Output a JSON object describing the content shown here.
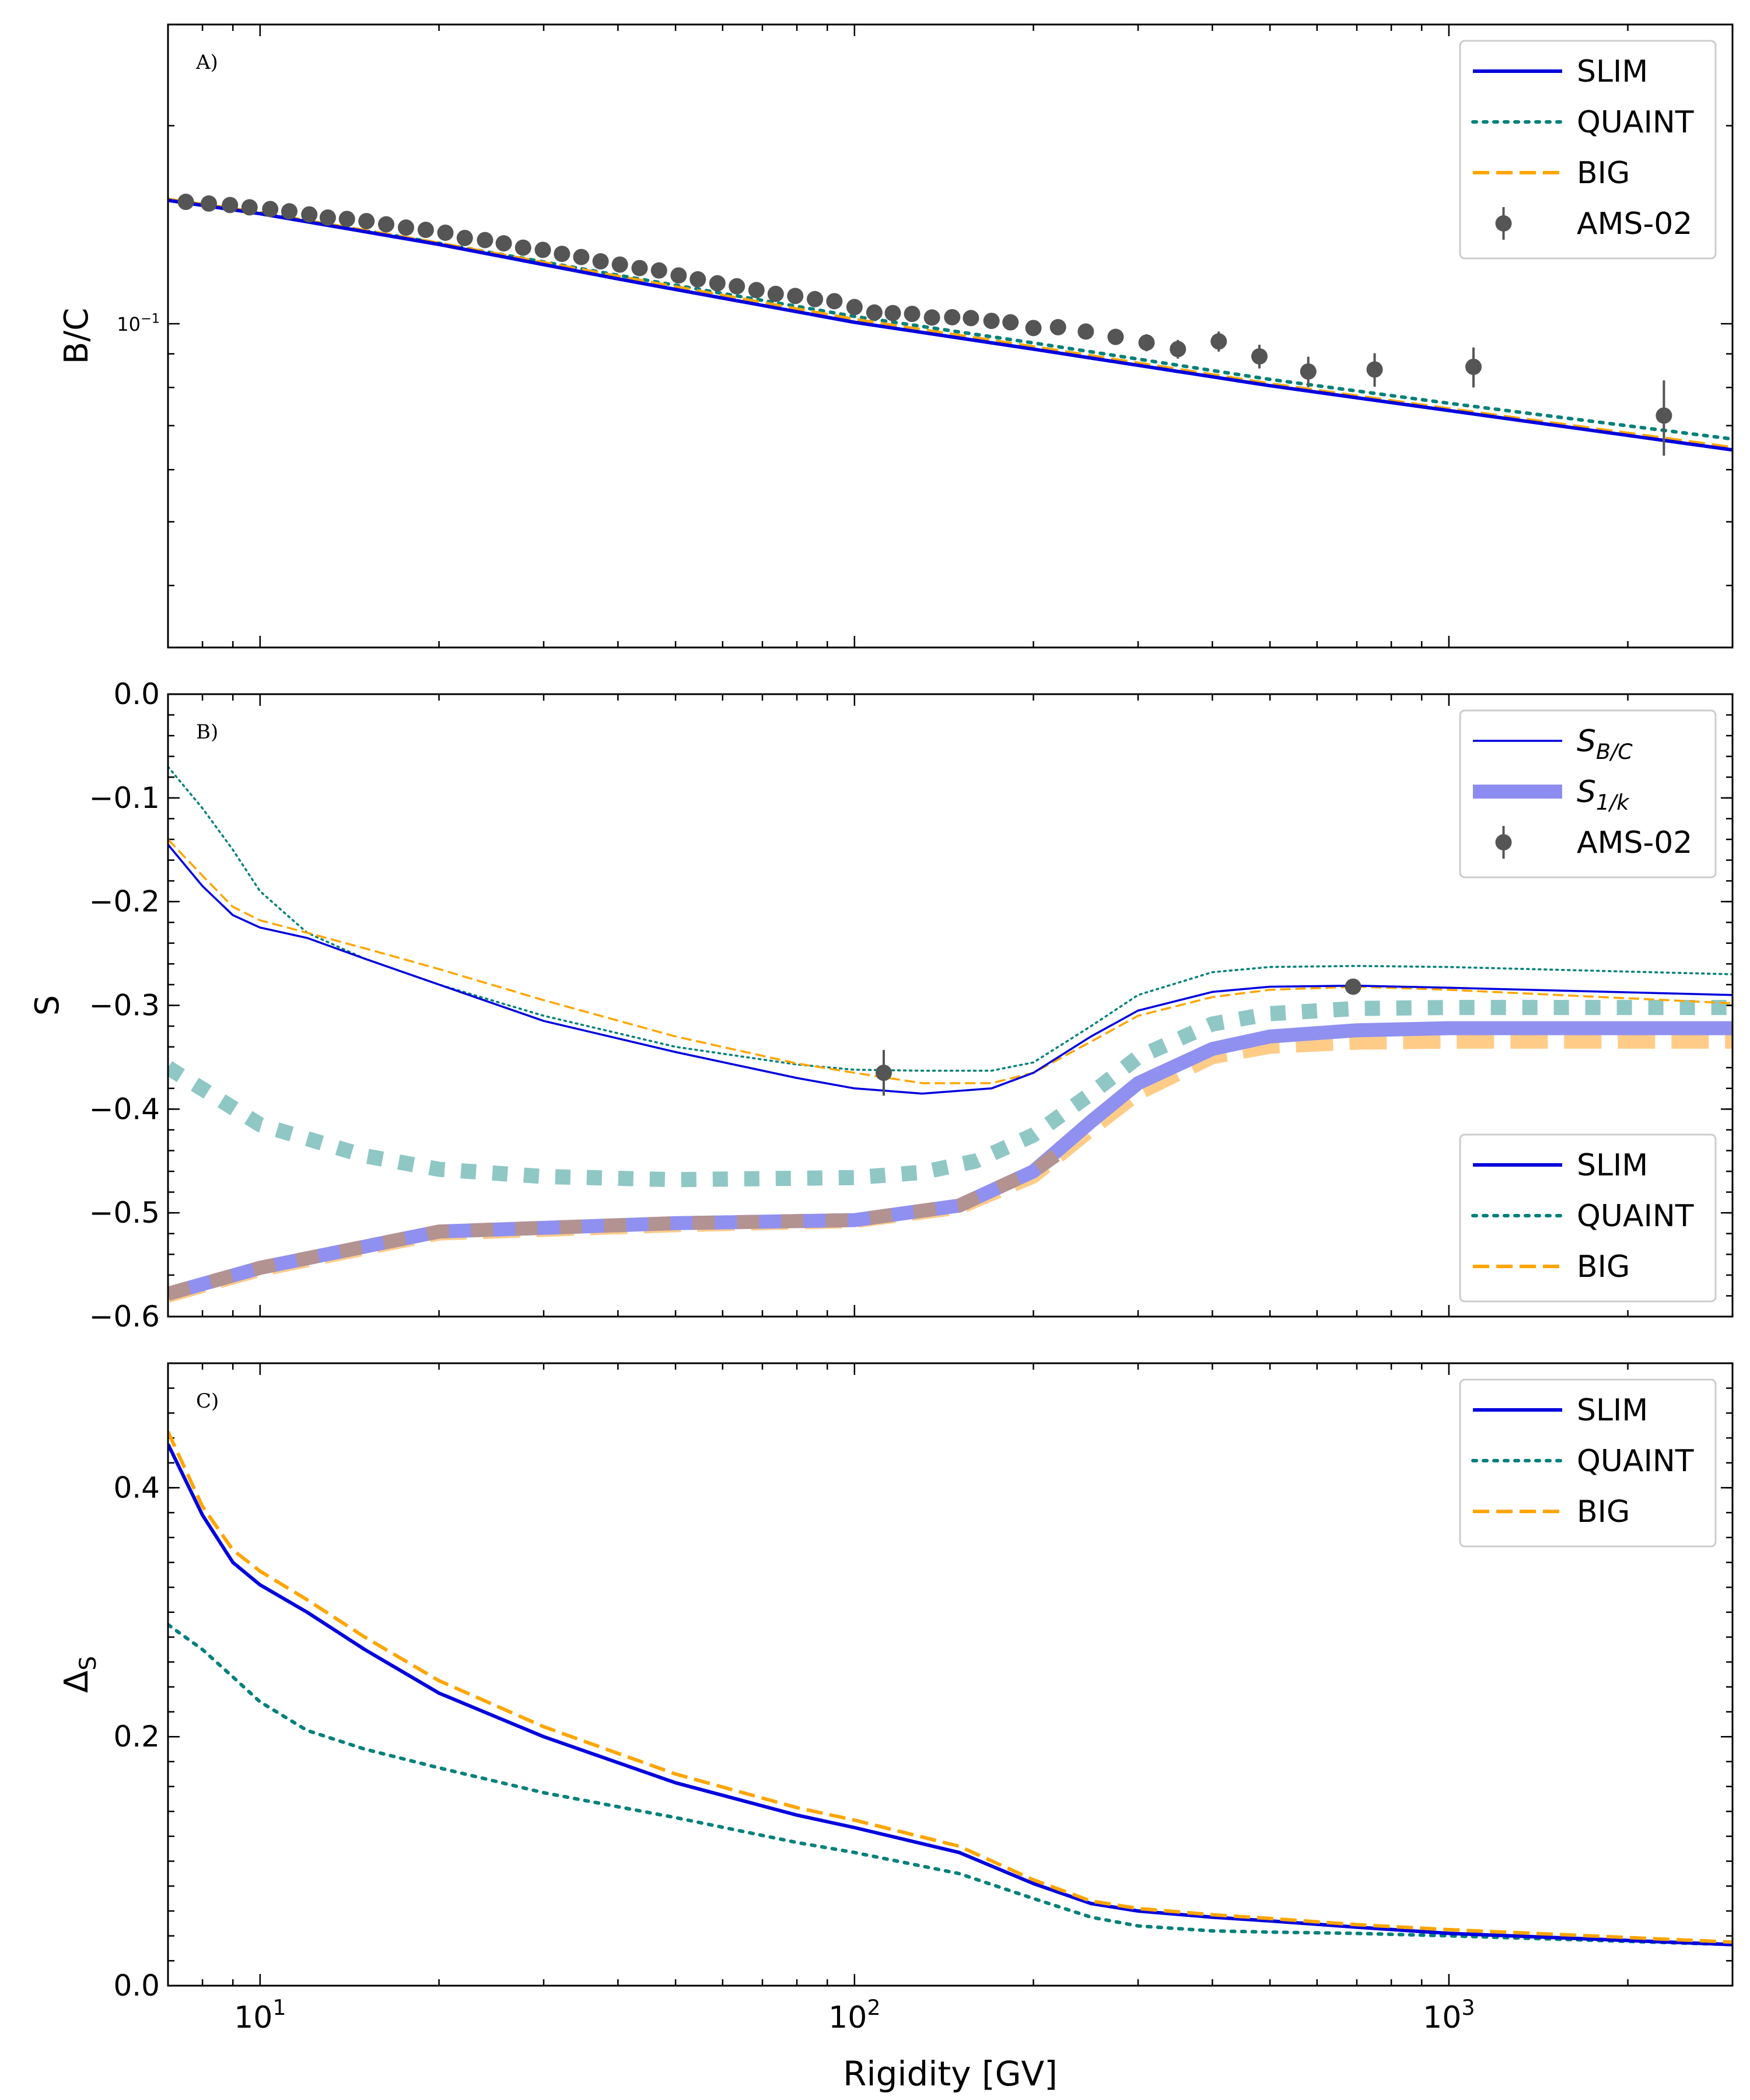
{
  "chart_data": [
    {
      "type": "line",
      "panel_label": "A)",
      "ylabel": "B/C",
      "yscale": "log",
      "xscale": "log",
      "xlim": [
        7,
        3000
      ],
      "ylim": [
        0.0322,
        0.285
      ],
      "yticks": [
        {
          "value": 0.1,
          "base": "10",
          "exp": "−1"
        }
      ],
      "legend": {
        "position": "top-right",
        "entries": [
          {
            "label": "SLIM",
            "style": "solid",
            "color": "#0000dd"
          },
          {
            "label": "QUAINT",
            "style": "dotted",
            "color": "#00807a"
          },
          {
            "label": "BIG",
            "style": "dashed",
            "color": "#ffa500"
          },
          {
            "label": "AMS-02",
            "style": "marker",
            "color": "#555555"
          }
        ]
      },
      "series": [
        {
          "name": "QUAINT",
          "color": "#00807a",
          "style": "dotted",
          "x": [
            7,
            10,
            20,
            40,
            100,
            200,
            500,
            1000,
            3000
          ],
          "y": [
            0.1545,
            0.1475,
            0.1325,
            0.1185,
            0.1026,
            0.0935,
            0.0823,
            0.0757,
            0.0668
          ]
        },
        {
          "name": "BIG",
          "color": "#ffa500",
          "style": "dashed",
          "x": [
            7,
            10,
            20,
            40,
            100,
            200,
            500,
            1000,
            3000
          ],
          "y": [
            0.1545,
            0.1475,
            0.1325,
            0.118,
            0.1015,
            0.0922,
            0.081,
            0.0742,
            0.0648
          ]
        },
        {
          "name": "SLIM",
          "color": "#0000dd",
          "style": "solid",
          "x": [
            7,
            10,
            20,
            40,
            100,
            200,
            500,
            1000,
            3000
          ],
          "y": [
            0.154,
            0.147,
            0.132,
            0.117,
            0.1005,
            0.0915,
            0.0805,
            0.0738,
            0.0643
          ]
        }
      ],
      "points": {
        "name": "AMS-02",
        "color": "#555555",
        "x": [
          7.5,
          8.2,
          8.9,
          9.6,
          10.4,
          11.2,
          12.1,
          13.0,
          14.0,
          15.1,
          16.3,
          17.6,
          19.0,
          20.5,
          22.1,
          23.9,
          25.7,
          27.7,
          29.9,
          32.2,
          34.7,
          37.4,
          40.3,
          43.5,
          46.9,
          50.6,
          54.5,
          58.8,
          63.4,
          68.4,
          73.7,
          79.5,
          85.8,
          92.5,
          100,
          108,
          116,
          125,
          135,
          146,
          157,
          170,
          183,
          200,
          220,
          245,
          275,
          310,
          350,
          410,
          480,
          580,
          750,
          1100,
          2300
        ],
        "y": [
          0.1532,
          0.1523,
          0.1515,
          0.1503,
          0.1494,
          0.1482,
          0.1466,
          0.145,
          0.1443,
          0.1432,
          0.1416,
          0.14,
          0.1389,
          0.1375,
          0.135,
          0.134,
          0.1325,
          0.1305,
          0.1295,
          0.1277,
          0.1263,
          0.1244,
          0.123,
          0.1215,
          0.1205,
          0.1184,
          0.1168,
          0.1152,
          0.114,
          0.1125,
          0.111,
          0.1102,
          0.109,
          0.1082,
          0.106,
          0.104,
          0.1038,
          0.1035,
          0.1022,
          0.1023,
          0.102,
          0.101,
          0.1005,
          0.0985,
          0.0988,
          0.0973,
          0.0955,
          0.0936,
          0.0915,
          0.094,
          0.0892,
          0.0846,
          0.0852,
          0.086,
          0.0725
        ],
        "yerr": [
          0.0008,
          0.0008,
          0.0008,
          0.0008,
          0.0008,
          0.0008,
          0.0008,
          0.0008,
          0.0008,
          0.0008,
          0.0008,
          0.0008,
          0.0008,
          0.0008,
          0.0009,
          0.0009,
          0.0009,
          0.0009,
          0.0009,
          0.0009,
          0.001,
          0.001,
          0.001,
          0.001,
          0.001,
          0.001,
          0.0011,
          0.0011,
          0.0011,
          0.0012,
          0.0012,
          0.0012,
          0.0013,
          0.0013,
          0.0014,
          0.0014,
          0.0015,
          0.0015,
          0.0016,
          0.0016,
          0.0017,
          0.0018,
          0.0019,
          0.002,
          0.0021,
          0.0023,
          0.0025,
          0.0028,
          0.003,
          0.0033,
          0.0037,
          0.0045,
          0.005,
          0.006,
          0.0095
        ]
      }
    },
    {
      "type": "line",
      "panel_label": "B)",
      "ylabel": "S",
      "xscale": "log",
      "xlim": [
        7,
        3000
      ],
      "ylim": [
        -0.6,
        0.0
      ],
      "yticks": [
        {
          "value": 0.0,
          "label": "0.0"
        },
        {
          "value": -0.1,
          "label": "−0.1"
        },
        {
          "value": -0.2,
          "label": "−0.2"
        },
        {
          "value": -0.3,
          "label": "−0.3"
        },
        {
          "value": -0.4,
          "label": "−0.4"
        },
        {
          "value": -0.5,
          "label": "−0.5"
        },
        {
          "value": -0.6,
          "label": "−0.6"
        }
      ],
      "legend_upper": {
        "position": "top-right",
        "entries": [
          {
            "label_main": "S",
            "label_sub": "B/C",
            "style": "thin",
            "color": "#0000dd"
          },
          {
            "label_main": "S",
            "label_sub": "1/k",
            "style": "thick",
            "color": "#8c8cf0"
          },
          {
            "label_main": "AMS-02",
            "label_sub": "",
            "style": "marker",
            "color": "#555555"
          }
        ]
      },
      "legend_lower": {
        "position": "lower-right",
        "entries": [
          {
            "label": "SLIM",
            "style": "solid",
            "color": "#0000dd"
          },
          {
            "label": "QUAINT",
            "style": "dotted",
            "color": "#00807a"
          },
          {
            "label": "BIG",
            "style": "dashed",
            "color": "#ffa500"
          }
        ]
      },
      "series": [
        {
          "name": "BIG S_1/k",
          "group": "thick",
          "color": "#ffcc88",
          "style": "dashed",
          "x": [
            7,
            10,
            20,
            50,
            100,
            150,
            200,
            250,
            300,
            400,
            500,
            700,
            1000,
            3000
          ],
          "y": [
            -0.58,
            -0.555,
            -0.52,
            -0.512,
            -0.508,
            -0.495,
            -0.465,
            -0.42,
            -0.385,
            -0.35,
            -0.34,
            -0.336,
            -0.335,
            -0.335
          ]
        },
        {
          "name": "QUAINT S_1/k",
          "group": "thick",
          "color": "#8fc7c5",
          "style": "dotted",
          "x": [
            7,
            10,
            15,
            20,
            30,
            50,
            100,
            130,
            160,
            200,
            250,
            300,
            400,
            500,
            700,
            1000,
            3000
          ],
          "y": [
            -0.36,
            -0.415,
            -0.445,
            -0.458,
            -0.465,
            -0.468,
            -0.466,
            -0.461,
            -0.45,
            -0.425,
            -0.385,
            -0.35,
            -0.318,
            -0.308,
            -0.303,
            -0.302,
            -0.302
          ]
        },
        {
          "name": "SLIM S_1/k",
          "group": "thick",
          "color": "#9090f0",
          "style": "solid",
          "x": [
            7,
            10,
            20,
            50,
            100,
            150,
            200,
            250,
            300,
            400,
            500,
            700,
            1000,
            3000
          ],
          "y": [
            -0.578,
            -0.553,
            -0.518,
            -0.51,
            -0.507,
            -0.493,
            -0.46,
            -0.412,
            -0.375,
            -0.342,
            -0.33,
            -0.324,
            -0.322,
            -0.322
          ]
        },
        {
          "name": "SLIM S_1/k overlay",
          "group": "thick",
          "color": "#b39292",
          "style": "dashed-overlay",
          "x": [
            7,
            10,
            20,
            50,
            100,
            150,
            200,
            230
          ],
          "y": [
            -0.578,
            -0.553,
            -0.518,
            -0.51,
            -0.507,
            -0.493,
            -0.46,
            -0.435
          ]
        },
        {
          "name": "QUAINT S_B/C",
          "group": "thin",
          "color": "#00807a",
          "style": "dotted",
          "x": [
            7,
            8,
            9,
            10,
            12,
            15,
            20,
            30,
            50,
            80,
            100,
            130,
            170,
            200,
            250,
            300,
            400,
            500,
            700,
            1000,
            3000
          ],
          "y": [
            -0.07,
            -0.11,
            -0.15,
            -0.19,
            -0.23,
            -0.255,
            -0.28,
            -0.31,
            -0.34,
            -0.357,
            -0.362,
            -0.363,
            -0.363,
            -0.355,
            -0.32,
            -0.29,
            -0.268,
            -0.263,
            -0.262,
            -0.263,
            -0.27
          ]
        },
        {
          "name": "BIG S_B/C",
          "group": "thin",
          "color": "#ffa500",
          "style": "dashed",
          "x": [
            7,
            8,
            9,
            10,
            12,
            15,
            20,
            30,
            50,
            80,
            100,
            130,
            170,
            200,
            250,
            300,
            400,
            500,
            700,
            1000,
            3000
          ],
          "y": [
            -0.14,
            -0.175,
            -0.205,
            -0.218,
            -0.23,
            -0.245,
            -0.265,
            -0.295,
            -0.33,
            -0.356,
            -0.365,
            -0.375,
            -0.375,
            -0.365,
            -0.335,
            -0.31,
            -0.292,
            -0.285,
            -0.282,
            -0.285,
            -0.298
          ]
        },
        {
          "name": "SLIM S_B/C",
          "group": "thin",
          "color": "#0000dd",
          "style": "solid",
          "x": [
            7,
            8,
            9,
            10,
            12,
            15,
            20,
            30,
            50,
            80,
            100,
            130,
            170,
            200,
            250,
            300,
            400,
            500,
            700,
            1000,
            3000
          ],
          "y": [
            -0.145,
            -0.185,
            -0.213,
            -0.225,
            -0.235,
            -0.255,
            -0.28,
            -0.315,
            -0.345,
            -0.37,
            -0.38,
            -0.385,
            -0.38,
            -0.365,
            -0.33,
            -0.305,
            -0.287,
            -0.282,
            -0.281,
            -0.283,
            -0.29
          ]
        }
      ],
      "points": {
        "name": "AMS-02",
        "color": "#555555",
        "x": [
          112,
          690
        ],
        "y": [
          -0.365,
          -0.282
        ],
        "yerr": [
          0.022,
          0.006
        ]
      }
    },
    {
      "type": "line",
      "panel_label": "C)",
      "ylabel_main": "Δ",
      "ylabel_sub": "S",
      "xlabel": "Rigidity [GV]",
      "xscale": "log",
      "xlim": [
        7,
        3000
      ],
      "ylim": [
        0.0,
        0.5
      ],
      "yticks": [
        {
          "value": 0.0,
          "label": "0.0"
        },
        {
          "value": 0.2,
          "label": "0.2"
        },
        {
          "value": 0.4,
          "label": "0.4"
        }
      ],
      "xticks": [
        {
          "value": 10,
          "base": "10",
          "exp": "1"
        },
        {
          "value": 100,
          "base": "10",
          "exp": "2"
        },
        {
          "value": 1000,
          "base": "10",
          "exp": "3"
        }
      ],
      "legend": {
        "position": "top-right",
        "entries": [
          {
            "label": "SLIM",
            "style": "solid",
            "color": "#0000dd"
          },
          {
            "label": "QUAINT",
            "style": "dotted",
            "color": "#00807a"
          },
          {
            "label": "BIG",
            "style": "dashed",
            "color": "#ffa500"
          }
        ]
      },
      "series": [
        {
          "name": "QUAINT",
          "color": "#00807a",
          "style": "dotted",
          "x": [
            7,
            8,
            9,
            10,
            12,
            15,
            20,
            30,
            50,
            80,
            100,
            150,
            200,
            250,
            300,
            400,
            500,
            700,
            1000,
            3000
          ],
          "y": [
            0.29,
            0.27,
            0.248,
            0.228,
            0.205,
            0.19,
            0.175,
            0.155,
            0.135,
            0.115,
            0.107,
            0.09,
            0.07,
            0.055,
            0.048,
            0.044,
            0.043,
            0.042,
            0.04,
            0.033
          ]
        },
        {
          "name": "SLIM",
          "color": "#0000dd",
          "style": "solid",
          "x": [
            7,
            8,
            9,
            10,
            12,
            15,
            20,
            30,
            50,
            80,
            100,
            150,
            200,
            250,
            300,
            400,
            500,
            700,
            1000,
            3000
          ],
          "y": [
            0.435,
            0.378,
            0.34,
            0.322,
            0.3,
            0.27,
            0.235,
            0.2,
            0.163,
            0.137,
            0.127,
            0.107,
            0.082,
            0.066,
            0.06,
            0.055,
            0.052,
            0.047,
            0.042,
            0.033
          ]
        },
        {
          "name": "BIG",
          "color": "#ffa500",
          "style": "dashed",
          "x": [
            7,
            8,
            9,
            10,
            12,
            15,
            20,
            30,
            50,
            80,
            100,
            150,
            200,
            250,
            300,
            400,
            500,
            700,
            1000,
            3000
          ],
          "y": [
            0.445,
            0.385,
            0.35,
            0.333,
            0.31,
            0.28,
            0.245,
            0.208,
            0.17,
            0.143,
            0.133,
            0.112,
            0.085,
            0.068,
            0.062,
            0.057,
            0.054,
            0.049,
            0.045,
            0.035
          ]
        }
      ]
    }
  ]
}
